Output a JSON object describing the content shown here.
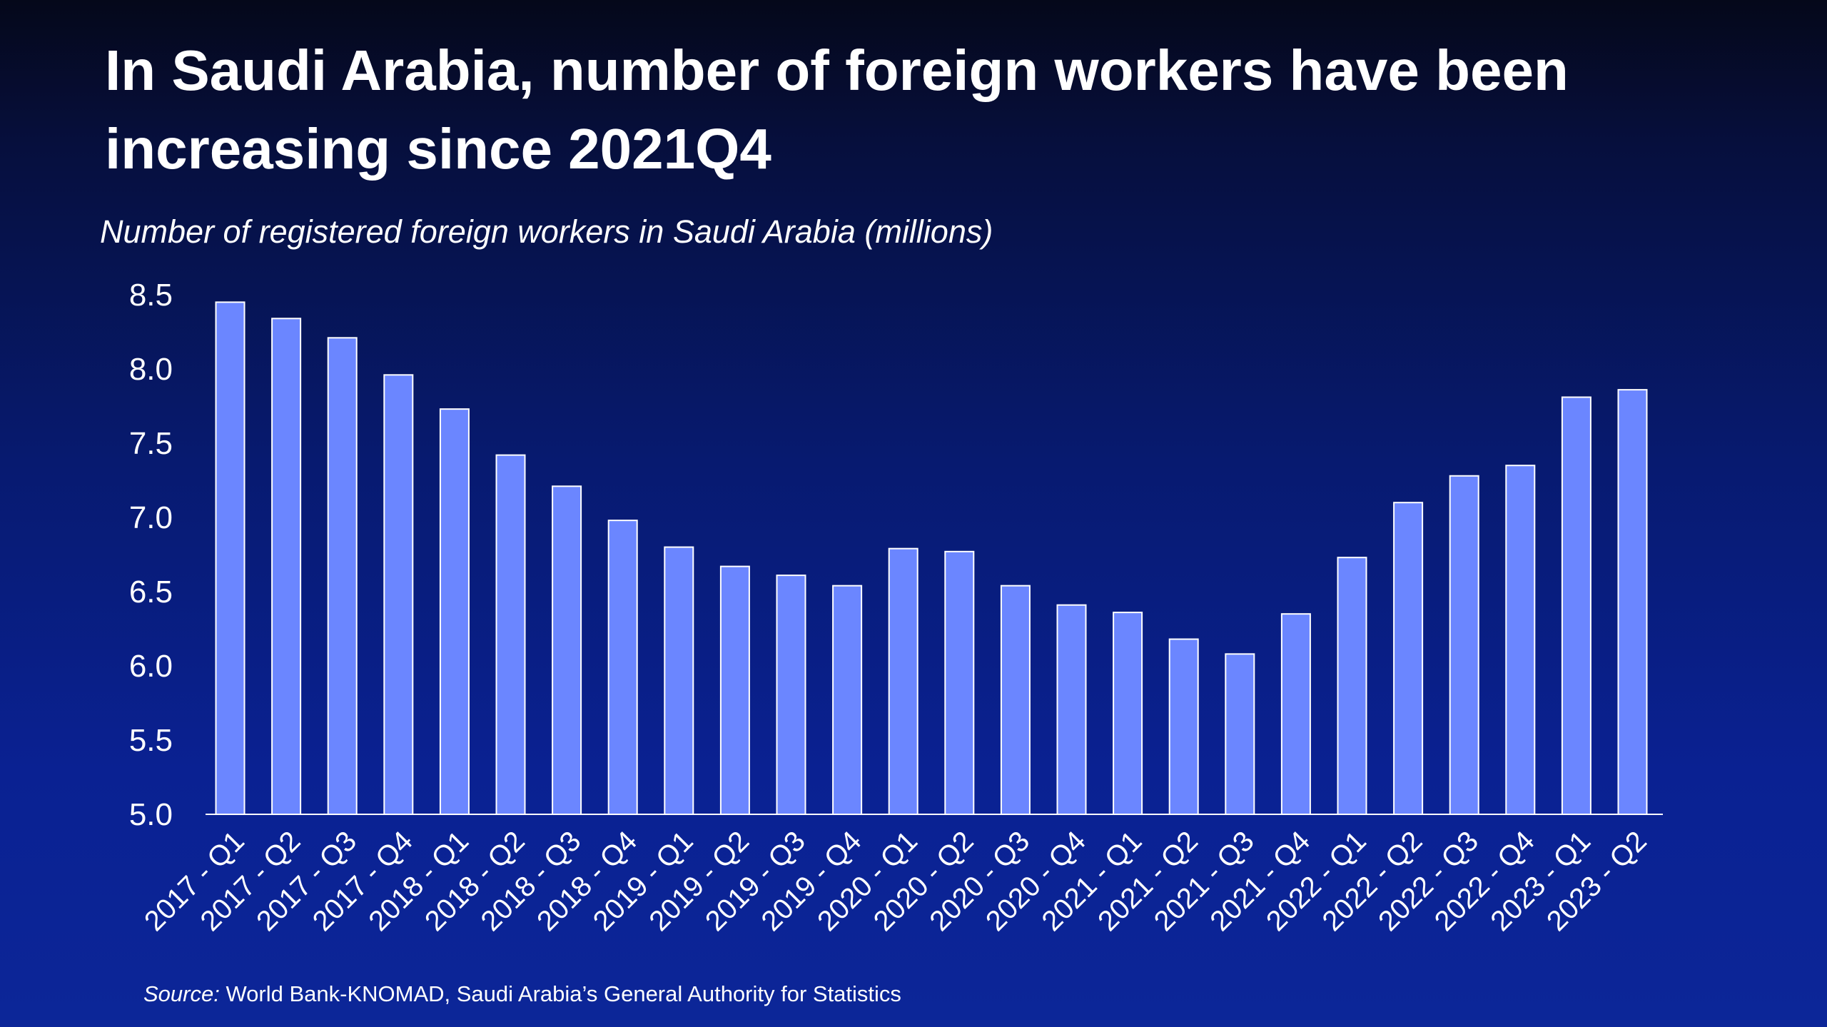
{
  "title": "In Saudi Arabia, number of foreign workers have been increasing since 2021Q4",
  "subtitle": "Number of registered foreign workers in Saudi Arabia (millions)",
  "source": {
    "prefix": "Source:",
    "text": " World Bank-KNOMAD, Saudi Arabia’s General Authority for Statistics"
  },
  "colors": {
    "bar": "#6b86ff",
    "bar_edge": "#ffffff",
    "axis": "#ffffff",
    "text": "#ffffff"
  },
  "chart_data": {
    "type": "bar",
    "title": "Number of registered foreign workers in Saudi Arabia (millions)",
    "xlabel": "",
    "ylabel": "",
    "ylim": [
      5.0,
      8.5
    ],
    "yticks": [
      "5.0",
      "5.5",
      "6.0",
      "6.5",
      "7.0",
      "7.5",
      "8.0",
      "8.5"
    ],
    "grid": false,
    "categories": [
      "2017 - Q1",
      "2017 - Q2",
      "2017 - Q3",
      "2017 - Q4",
      "2018 - Q1",
      "2018 - Q2",
      "2018 - Q3",
      "2018 - Q4",
      "2019 - Q1",
      "2019 - Q2",
      "2019 - Q3",
      "2019 - Q4",
      "2020 - Q1",
      "2020 - Q2",
      "2020 - Q3",
      "2020 - Q4",
      "2021 - Q1",
      "2021 - Q2",
      "2021 - Q3",
      "2021 - Q4",
      "2022 - Q1",
      "2022 - Q2",
      "2022 - Q3",
      "2022 - Q4",
      "2023 - Q1",
      "2023 - Q2"
    ],
    "values": [
      8.45,
      8.34,
      8.21,
      7.96,
      7.73,
      7.42,
      7.21,
      6.98,
      6.8,
      6.67,
      6.61,
      6.54,
      6.79,
      6.77,
      6.54,
      6.41,
      6.36,
      6.18,
      6.08,
      6.35,
      6.73,
      7.1,
      7.28,
      7.35,
      7.81,
      7.86
    ]
  }
}
